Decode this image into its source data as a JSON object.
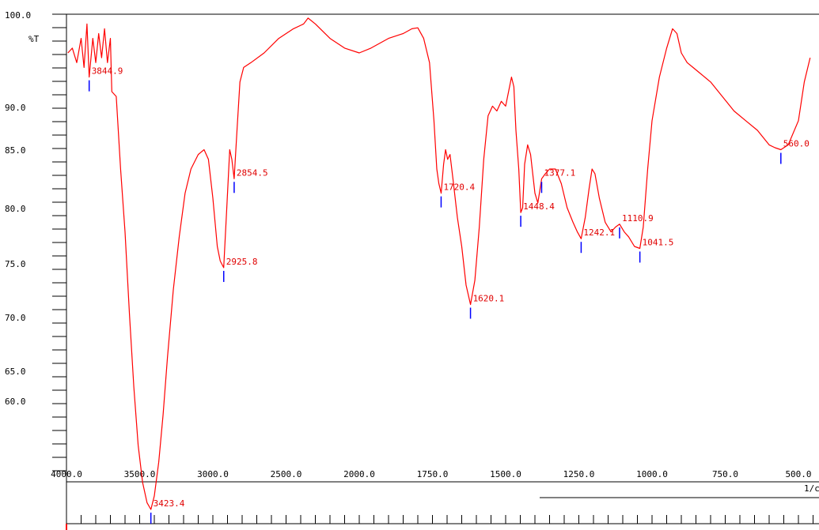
{
  "chart_data": {
    "type": "line",
    "ylabel": "%T",
    "y_tick_labels": [
      "100.0",
      "90.0",
      "85.0",
      "80.0",
      "75.0",
      "70.0",
      "65.0",
      "60.0"
    ],
    "x_tick_labels": [
      "4000.0",
      "3500.0",
      "3000.0",
      "2500.0",
      "2000.0",
      "1750.0",
      "1500.0",
      "1250.0",
      "1000.0",
      "750.0",
      "500.0"
    ],
    "x_unit_label": "1/c",
    "x_reversed": true,
    "grid": false,
    "series_color": "#ff0000",
    "peak_marker_color": "#0000ff",
    "series": [
      {
        "points": [
          [
            3990,
            96.0
          ],
          [
            3960,
            96.5
          ],
          [
            3930,
            95.0
          ],
          [
            3900,
            97.5
          ],
          [
            3880,
            94.5
          ],
          [
            3860,
            99.0
          ],
          [
            3844.9,
            93.5
          ],
          [
            3820,
            97.5
          ],
          [
            3800,
            95.0
          ],
          [
            3780,
            98.0
          ],
          [
            3760,
            95.5
          ],
          [
            3740,
            98.5
          ],
          [
            3720,
            95.0
          ],
          [
            3700,
            97.5
          ],
          [
            3690,
            92.0
          ],
          [
            3660,
            91.5
          ],
          [
            3630,
            84.0
          ],
          [
            3600,
            77.5
          ],
          [
            3570,
            69.0
          ],
          [
            3540,
            61.5
          ],
          [
            3510,
            53.5
          ],
          [
            3480,
            48.0
          ],
          [
            3450,
            45.0
          ],
          [
            3423.4,
            44.0
          ],
          [
            3400,
            46.0
          ],
          [
            3370,
            51.0
          ],
          [
            3340,
            58.0
          ],
          [
            3310,
            64.5
          ],
          [
            3270,
            71.5
          ],
          [
            3230,
            77.0
          ],
          [
            3190,
            81.5
          ],
          [
            3150,
            84.0
          ],
          [
            3100,
            85.5
          ],
          [
            3060,
            86.0
          ],
          [
            3030,
            85.0
          ],
          [
            3000,
            81.0
          ],
          [
            2970,
            76.0
          ],
          [
            2950,
            74.5
          ],
          [
            2925.8,
            73.8
          ],
          [
            2905,
            80.0
          ],
          [
            2885,
            86.0
          ],
          [
            2870,
            85.0
          ],
          [
            2854.5,
            83.0
          ],
          [
            2835,
            88.0
          ],
          [
            2815,
            93.0
          ],
          [
            2790,
            94.5
          ],
          [
            2740,
            95.0
          ],
          [
            2650,
            96.0
          ],
          [
            2550,
            97.5
          ],
          [
            2450,
            98.5
          ],
          [
            2380,
            99.0
          ],
          [
            2350,
            99.6
          ],
          [
            2300,
            99.0
          ],
          [
            2200,
            97.5
          ],
          [
            2100,
            96.5
          ],
          [
            2000,
            96.0
          ],
          [
            1960,
            96.5
          ],
          [
            1900,
            97.5
          ],
          [
            1850,
            98.0
          ],
          [
            1820,
            98.5
          ],
          [
            1800,
            98.6
          ],
          [
            1780,
            97.5
          ],
          [
            1760,
            95.0
          ],
          [
            1745,
            89.0
          ],
          [
            1735,
            84.0
          ],
          [
            1728,
            82.5
          ],
          [
            1720.4,
            81.5
          ],
          [
            1712,
            84.5
          ],
          [
            1705,
            86.0
          ],
          [
            1698,
            85.0
          ],
          [
            1690,
            85.5
          ],
          [
            1680,
            83.0
          ],
          [
            1665,
            79.0
          ],
          [
            1650,
            76.0
          ],
          [
            1635,
            72.0
          ],
          [
            1620.1,
            70.0
          ],
          [
            1605,
            72.5
          ],
          [
            1590,
            78.0
          ],
          [
            1575,
            85.0
          ],
          [
            1560,
            89.5
          ],
          [
            1545,
            90.5
          ],
          [
            1530,
            90.0
          ],
          [
            1515,
            91.0
          ],
          [
            1500,
            90.5
          ],
          [
            1490,
            92.0
          ],
          [
            1480,
            93.5
          ],
          [
            1472,
            92.5
          ],
          [
            1465,
            88.0
          ],
          [
            1455,
            84.0
          ],
          [
            1448.4,
            79.5
          ],
          [
            1442,
            80.0
          ],
          [
            1435,
            84.5
          ],
          [
            1425,
            86.5
          ],
          [
            1415,
            85.5
          ],
          [
            1400,
            81.5
          ],
          [
            1390,
            80.5
          ],
          [
            1377.1,
            83.0
          ],
          [
            1365,
            83.5
          ],
          [
            1350,
            84.0
          ],
          [
            1330,
            84.0
          ],
          [
            1310,
            82.5
          ],
          [
            1290,
            80.0
          ],
          [
            1270,
            78.5
          ],
          [
            1255,
            77.5
          ],
          [
            1242.1,
            76.8
          ],
          [
            1228,
            79.0
          ],
          [
            1215,
            82.0
          ],
          [
            1205,
            84.0
          ],
          [
            1195,
            83.5
          ],
          [
            1180,
            81.0
          ],
          [
            1160,
            78.5
          ],
          [
            1140,
            77.5
          ],
          [
            1125,
            78.0
          ],
          [
            1110.9,
            78.3
          ],
          [
            1095,
            77.5
          ],
          [
            1080,
            77.0
          ],
          [
            1060,
            76.0
          ],
          [
            1041.5,
            75.8
          ],
          [
            1030,
            78.0
          ],
          [
            1015,
            84.0
          ],
          [
            1000,
            89.0
          ],
          [
            975,
            93.5
          ],
          [
            950,
            96.5
          ],
          [
            930,
            98.5
          ],
          [
            915,
            98.0
          ],
          [
            900,
            96.0
          ],
          [
            880,
            95.0
          ],
          [
            860,
            94.5
          ],
          [
            840,
            94.0
          ],
          [
            800,
            93.0
          ],
          [
            760,
            91.5
          ],
          [
            720,
            90.0
          ],
          [
            680,
            89.0
          ],
          [
            640,
            88.0
          ],
          [
            600,
            86.5
          ],
          [
            580,
            86.2
          ],
          [
            560,
            86.0
          ],
          [
            535,
            86.5
          ],
          [
            500,
            89.0
          ],
          [
            480,
            93.0
          ],
          [
            460,
            95.5
          ]
        ]
      }
    ],
    "peak_labels": [
      {
        "x": 3844.9,
        "y": 93.5,
        "label": "3844.9"
      },
      {
        "x": 3423.4,
        "y": 44.0,
        "label": "3423.4"
      },
      {
        "x": 2925.8,
        "y": 73.8,
        "label": "2925.8"
      },
      {
        "x": 2854.5,
        "y": 83.0,
        "label": "2854.5"
      },
      {
        "x": 1720.4,
        "y": 81.5,
        "label": "1720.4"
      },
      {
        "x": 1620.1,
        "y": 70.0,
        "label": "1620.1"
      },
      {
        "x": 1448.4,
        "y": 79.5,
        "label": "1448.4"
      },
      {
        "x": 1377.1,
        "y": 83.0,
        "label": "1377.1"
      },
      {
        "x": 1242.1,
        "y": 76.8,
        "label": "1242.1"
      },
      {
        "x": 1110.9,
        "y": 78.3,
        "label": "1110.9"
      },
      {
        "x": 1041.5,
        "y": 75.8,
        "label": "1041.5"
      },
      {
        "x": 560,
        "y": 86.0,
        "label": "560.0"
      }
    ]
  }
}
